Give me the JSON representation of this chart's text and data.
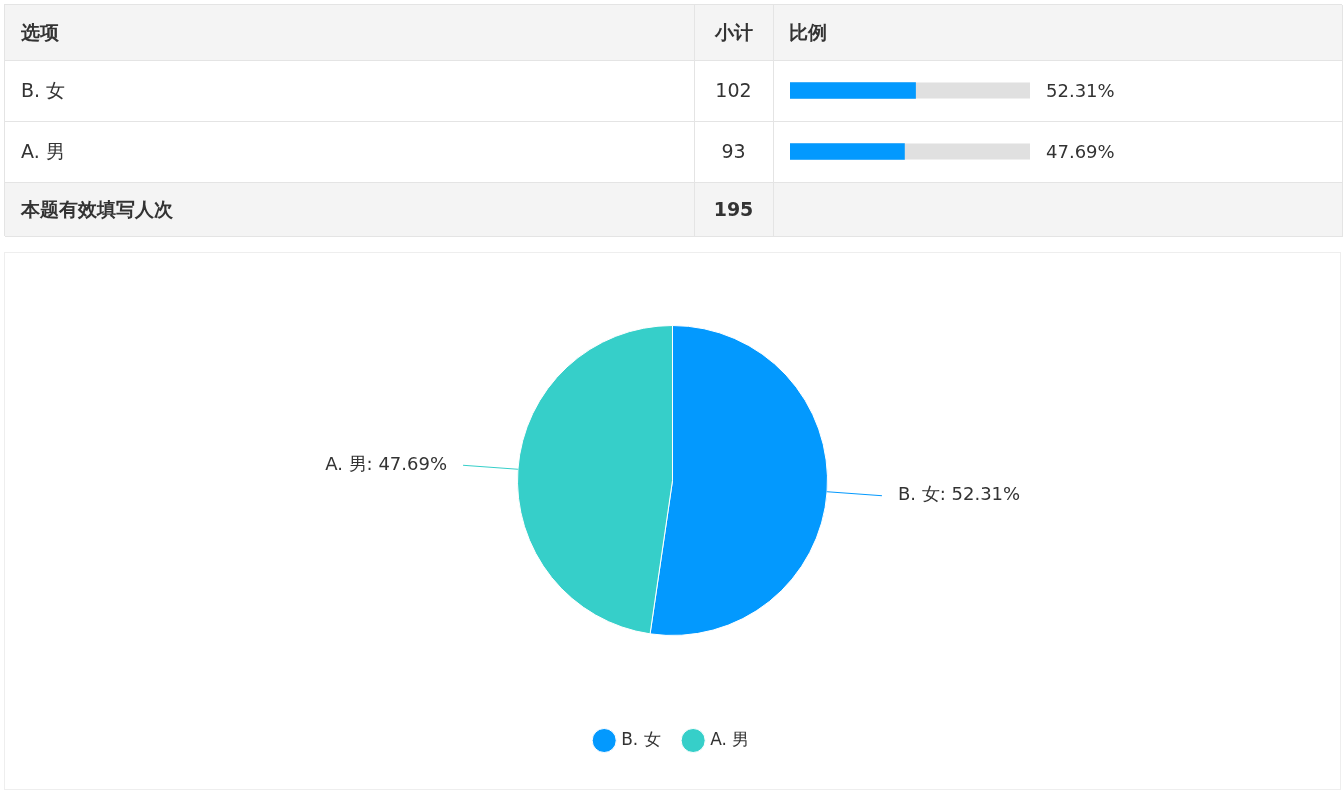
{
  "chart_data": [
    {
      "type": "bar",
      "orientation": "horizontal",
      "categories": [
        "B. 女",
        "A. 男"
      ],
      "values": [
        52.31,
        47.69
      ],
      "value_labels": [
        "52.31%",
        "47.69%"
      ],
      "color": "#0399fe",
      "xlim": [
        0,
        100
      ],
      "tick_labels": false,
      "annotations": [
        "选项",
        "小计",
        "比例",
        "102",
        "93",
        "本题有效填写人次",
        "195"
      ]
    },
    {
      "type": "pie",
      "categories": [
        "B. 女",
        "A. 男"
      ],
      "values": [
        52.31,
        47.69
      ],
      "colors": [
        "#0399fe",
        "#36cfc9"
      ],
      "value_labels": [
        "B. 女: 52.31%",
        "A. 男: 47.69%"
      ],
      "legend": "bottom"
    }
  ]
}
